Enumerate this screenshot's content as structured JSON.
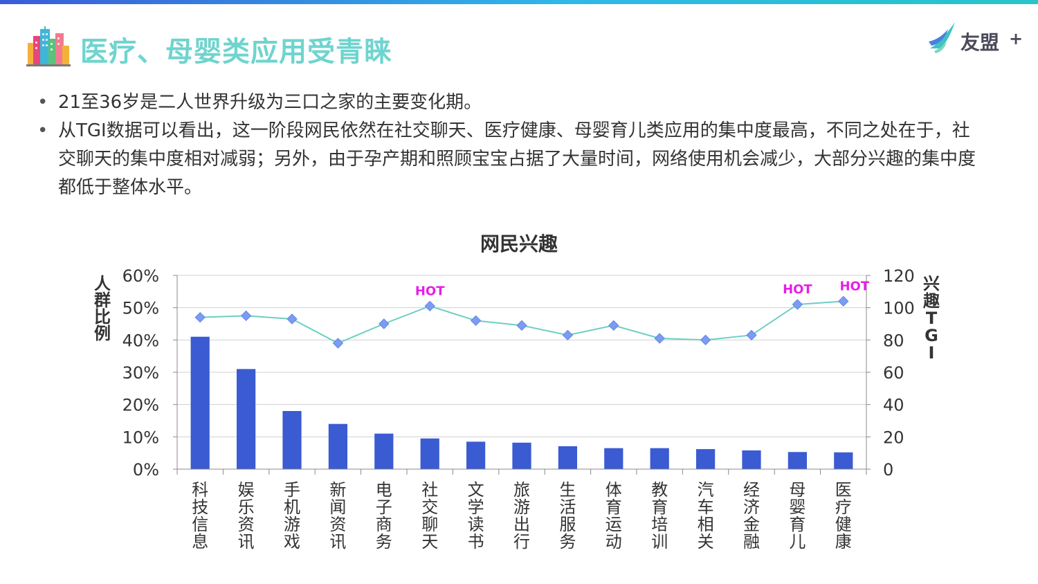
{
  "header": {
    "title": "医疗、母婴类应用受青睐",
    "brand_name": "友盟",
    "brand_plus": "+"
  },
  "bullets": [
    "21至36岁是二人世界升级为三口之家的主要变化期。",
    "从TGI数据可以看出，这一阶段网民依然在社交聊天、医疗健康、母婴育儿类应用的集中度最高，不同之处在于，社交聊天的集中度相对减弱；另外，由于孕产期和照顾宝宝占据了大量时间，网络使用机会减少，大部分兴趣的集中度都低于整体水平。"
  ],
  "colors": {
    "title": "#6fd4cf",
    "bar": "#3a5bd1",
    "line": "#6ccfc2",
    "marker": "#7b9cf0",
    "hot": "#e61ee6"
  },
  "chart_data": {
    "type": "bar",
    "title": "网民兴趣",
    "categories": [
      "科技信息",
      "娱乐资讯",
      "手机游戏",
      "新闻资讯",
      "电子商务",
      "社交聊天",
      "文学读书",
      "旅游出行",
      "生活服务",
      "体育运动",
      "教育培训",
      "汽车相关",
      "经济金融",
      "母婴育儿",
      "医疗健康"
    ],
    "ylabel": "人群比例",
    "y2label": "兴趣TGI",
    "ylim": [
      0,
      60
    ],
    "y2lim": [
      0,
      120
    ],
    "yticks": [
      "0%",
      "10%",
      "20%",
      "30%",
      "40%",
      "50%",
      "60%"
    ],
    "y2ticks": [
      "0",
      "20",
      "40",
      "60",
      "80",
      "100",
      "120"
    ],
    "grid": true,
    "series": [
      {
        "kind": "bar",
        "axis": "left",
        "values": [
          41,
          31,
          18,
          14,
          11,
          9.5,
          8.5,
          8.2,
          7.1,
          6.5,
          6.5,
          6.2,
          5.8,
          5.3,
          5.2
        ]
      },
      {
        "kind": "line",
        "axis": "right",
        "values": [
          94,
          95,
          93,
          78,
          90,
          101,
          92,
          89,
          83,
          89,
          81,
          80,
          83,
          102,
          104
        ]
      }
    ],
    "hot_label": "HOT",
    "hot_indices": [
      5,
      13,
      14
    ]
  }
}
